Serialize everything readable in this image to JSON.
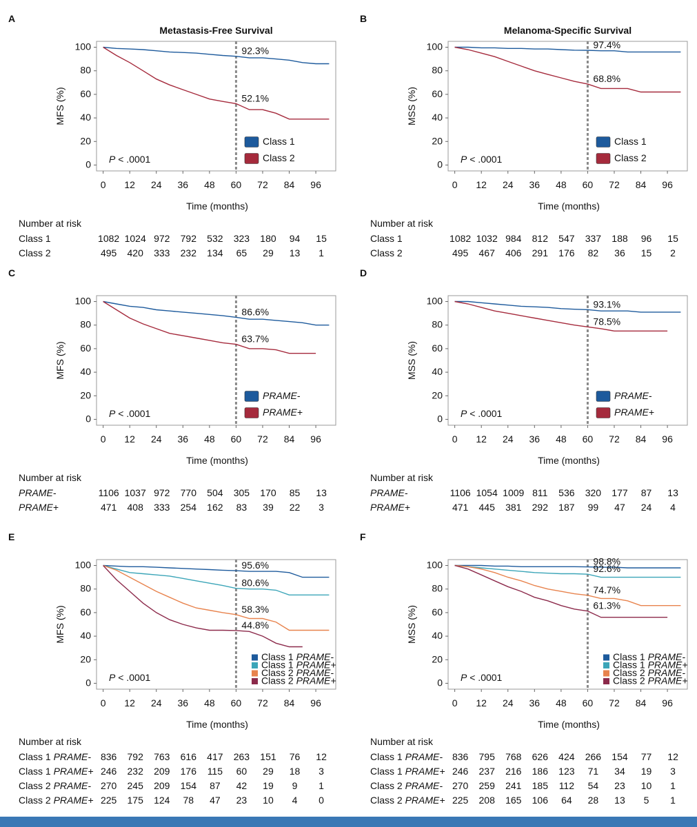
{
  "chart_data": [
    {
      "type": "line",
      "panel": "A",
      "title": "Metastasis-Free Survival",
      "ylabel": "MFS (%)",
      "xlabel": "Time (months)",
      "annotation": "P < .0001",
      "xlim": [
        -3,
        105
      ],
      "ylim": [
        -5,
        105
      ],
      "xticks": [
        0,
        12,
        24,
        36,
        48,
        60,
        72,
        84,
        96
      ],
      "yticks": [
        0,
        20,
        40,
        60,
        80,
        100
      ],
      "landmark_x": 60,
      "legend": "lower-right",
      "x": [
        0,
        6,
        12,
        18,
        24,
        30,
        36,
        42,
        48,
        54,
        60,
        66,
        72,
        78,
        84,
        90,
        96,
        102
      ],
      "series": [
        {
          "name": "Class 1",
          "color": "#1d5a9c",
          "values": [
            100,
            99,
            98.5,
            98,
            97,
            96,
            95.5,
            95,
            94,
            93,
            92.3,
            91,
            91,
            90,
            89,
            87,
            86,
            86
          ],
          "landmark": {
            "value": 92.3,
            "label": "92.3%"
          }
        },
        {
          "name": "Class 2",
          "color": "#a52a3c",
          "values": [
            100,
            93,
            87,
            80,
            73,
            68,
            64,
            60,
            56,
            54,
            52.1,
            47,
            47,
            44,
            39,
            39,
            39,
            39
          ],
          "landmark": {
            "value": 52.1,
            "label": "52.1%"
          }
        }
      ],
      "risk_table": {
        "title": "Number at risk",
        "rows": [
          {
            "label": "Class 1",
            "values": [
              1082,
              1024,
              972,
              792,
              532,
              323,
              180,
              94,
              15
            ]
          },
          {
            "label": "Class 2",
            "values": [
              495,
              420,
              333,
              232,
              134,
              65,
              29,
              13,
              1
            ]
          }
        ]
      }
    },
    {
      "type": "line",
      "panel": "B",
      "title": "Melanoma-Specific Survival",
      "ylabel": "MSS (%)",
      "xlabel": "Time (months)",
      "annotation": "P < .0001",
      "xlim": [
        -3,
        105
      ],
      "ylim": [
        -5,
        105
      ],
      "xticks": [
        0,
        12,
        24,
        36,
        48,
        60,
        72,
        84,
        96
      ],
      "yticks": [
        0,
        20,
        40,
        60,
        80,
        100
      ],
      "landmark_x": 60,
      "legend": "lower-right",
      "x": [
        0,
        6,
        12,
        18,
        24,
        30,
        36,
        42,
        48,
        54,
        60,
        66,
        72,
        78,
        84,
        90,
        96,
        102
      ],
      "series": [
        {
          "name": "Class 1",
          "color": "#1d5a9c",
          "values": [
            100,
            100,
            99.5,
            99.5,
            99,
            99,
            98.5,
            98.5,
            98,
            97.5,
            97.4,
            97,
            97,
            96,
            96,
            96,
            96,
            96
          ],
          "landmark": {
            "value": 97.4,
            "label": "97.4%"
          }
        },
        {
          "name": "Class 2",
          "color": "#a52a3c",
          "values": [
            100,
            98,
            95,
            92,
            88,
            84,
            80,
            77,
            74,
            71,
            68.8,
            65,
            65,
            65,
            62,
            62,
            62,
            62
          ],
          "landmark": {
            "value": 68.8,
            "label": "68.8%"
          }
        }
      ],
      "risk_table": {
        "title": "Number at risk",
        "rows": [
          {
            "label": "Class 1",
            "values": [
              1082,
              1032,
              984,
              812,
              547,
              337,
              188,
              96,
              15
            ]
          },
          {
            "label": "Class 2",
            "values": [
              495,
              467,
              406,
              291,
              176,
              82,
              36,
              15,
              2
            ]
          }
        ]
      }
    },
    {
      "type": "line",
      "panel": "C",
      "ylabel": "MFS (%)",
      "xlabel": "Time (months)",
      "annotation": "P < .0001",
      "xlim": [
        -3,
        105
      ],
      "ylim": [
        -5,
        105
      ],
      "xticks": [
        0,
        12,
        24,
        36,
        48,
        60,
        72,
        84,
        96
      ],
      "yticks": [
        0,
        20,
        40,
        60,
        80,
        100
      ],
      "landmark_x": 60,
      "legend": "lower-right",
      "x": [
        0,
        6,
        12,
        18,
        24,
        30,
        36,
        42,
        48,
        54,
        60,
        66,
        72,
        78,
        84,
        90,
        96,
        102
      ],
      "series": [
        {
          "name": "PRAME-",
          "color": "#1d5a9c",
          "values": [
            100,
            98,
            96,
            95,
            93,
            92,
            91,
            90,
            89,
            88,
            86.6,
            85,
            85,
            84,
            83,
            82,
            80,
            80
          ],
          "landmark": {
            "value": 86.6,
            "label": "86.6%"
          }
        },
        {
          "name": "PRAME+",
          "color": "#a52a3c",
          "values": [
            100,
            93,
            86,
            81,
            77,
            73,
            71,
            69,
            67,
            65,
            63.7,
            60,
            60,
            59,
            56,
            56,
            56,
            null
          ],
          "landmark": {
            "value": 63.7,
            "label": "63.7%"
          }
        }
      ],
      "risk_table": {
        "title": "Number at risk",
        "rows": [
          {
            "label": "PRAME-",
            "values": [
              1106,
              1037,
              972,
              770,
              504,
              305,
              170,
              85,
              13
            ]
          },
          {
            "label": "PRAME+",
            "values": [
              471,
              408,
              333,
              254,
              162,
              83,
              39,
              22,
              3
            ]
          }
        ]
      }
    },
    {
      "type": "line",
      "panel": "D",
      "ylabel": "MSS (%)",
      "xlabel": "Time (months)",
      "annotation": "P < .0001",
      "xlim": [
        -3,
        105
      ],
      "ylim": [
        -5,
        105
      ],
      "xticks": [
        0,
        12,
        24,
        36,
        48,
        60,
        72,
        84,
        96
      ],
      "yticks": [
        0,
        20,
        40,
        60,
        80,
        100
      ],
      "landmark_x": 60,
      "legend": "lower-right",
      "x": [
        0,
        6,
        12,
        18,
        24,
        30,
        36,
        42,
        48,
        54,
        60,
        66,
        72,
        78,
        84,
        90,
        96,
        102
      ],
      "series": [
        {
          "name": "PRAME-",
          "color": "#1d5a9c",
          "values": [
            100,
            100,
            99,
            98,
            97,
            96,
            95.5,
            95,
            94,
            93.5,
            93.1,
            92,
            92,
            92,
            91,
            91,
            91,
            91
          ],
          "landmark": {
            "value": 93.1,
            "label": "93.1%"
          }
        },
        {
          "name": "PRAME+",
          "color": "#a52a3c",
          "values": [
            100,
            98,
            95,
            92,
            90,
            88,
            86,
            84,
            82,
            80,
            78.5,
            77,
            75,
            75,
            75,
            75,
            75,
            null
          ],
          "landmark": {
            "value": 78.5,
            "label": "78.5%"
          }
        }
      ],
      "risk_table": {
        "title": "Number at risk",
        "rows": [
          {
            "label": "PRAME-",
            "values": [
              1106,
              1054,
              1009,
              811,
              536,
              320,
              177,
              87,
              13
            ]
          },
          {
            "label": "PRAME+",
            "values": [
              471,
              445,
              381,
              292,
              187,
              99,
              47,
              24,
              4
            ]
          }
        ]
      }
    },
    {
      "type": "line",
      "panel": "E",
      "ylabel": "MFS (%)",
      "xlabel": "Time (months)",
      "annotation": "P < .0001",
      "xlim": [
        -3,
        105
      ],
      "ylim": [
        -5,
        105
      ],
      "xticks": [
        0,
        12,
        24,
        36,
        48,
        60,
        72,
        84,
        96
      ],
      "yticks": [
        0,
        20,
        40,
        60,
        80,
        100
      ],
      "landmark_x": 60,
      "legend": "lower-right",
      "x": [
        0,
        6,
        12,
        18,
        24,
        30,
        36,
        42,
        48,
        54,
        60,
        66,
        72,
        78,
        84,
        90,
        96,
        102
      ],
      "series": [
        {
          "name": "Class 1 PRAME-",
          "color": "#1d5a9c",
          "values": [
            100,
            99.5,
            99,
            99,
            98.5,
            98,
            97.5,
            97,
            96.5,
            96,
            95.6,
            95,
            95,
            95,
            94,
            90,
            90,
            90
          ],
          "landmark": {
            "value": 95.6,
            "label": "95.6%"
          }
        },
        {
          "name": "Class 1 PRAME+",
          "color": "#3ba5b8",
          "values": [
            100,
            97,
            94,
            93,
            92,
            91,
            89,
            87,
            85,
            83,
            80.6,
            80,
            80,
            79,
            75,
            75,
            75,
            75
          ],
          "landmark": {
            "value": 80.6,
            "label": "80.6%"
          }
        },
        {
          "name": "Class 2 PRAME-",
          "color": "#e8834d",
          "values": [
            100,
            96,
            90,
            84,
            78,
            73,
            68,
            64,
            62,
            60,
            58.3,
            55,
            55,
            52,
            45,
            45,
            45,
            45
          ],
          "landmark": {
            "value": 58.3,
            "label": "58.3%"
          }
        },
        {
          "name": "Class 2 PRAME+",
          "color": "#8c2a4b",
          "values": [
            100,
            88,
            78,
            68,
            60,
            54,
            50,
            47,
            45,
            45,
            44.8,
            44,
            40,
            34,
            31,
            31,
            null,
            null
          ],
          "landmark": {
            "value": 44.8,
            "label": "44.8%"
          }
        }
      ],
      "risk_table": {
        "title": "Number at risk",
        "rows": [
          {
            "label": "Class 1 PRAME-",
            "values": [
              836,
              792,
              763,
              616,
              417,
              263,
              151,
              76,
              12
            ]
          },
          {
            "label": "Class 1 PRAME+",
            "values": [
              246,
              232,
              209,
              176,
              115,
              60,
              29,
              18,
              3
            ]
          },
          {
            "label": "Class 2 PRAME-",
            "values": [
              270,
              245,
              209,
              154,
              87,
              42,
              19,
              9,
              1
            ]
          },
          {
            "label": "Class 2 PRAME+",
            "values": [
              225,
              175,
              124,
              78,
              47,
              23,
              10,
              4,
              0
            ]
          }
        ]
      }
    },
    {
      "type": "line",
      "panel": "F",
      "ylabel": "MSS (%)",
      "xlabel": "Time (months)",
      "annotation": "P < .0001",
      "xlim": [
        -3,
        105
      ],
      "ylim": [
        -5,
        105
      ],
      "xticks": [
        0,
        12,
        24,
        36,
        48,
        60,
        72,
        84,
        96
      ],
      "yticks": [
        0,
        20,
        40,
        60,
        80,
        100
      ],
      "landmark_x": 60,
      "legend": "lower-right",
      "x": [
        0,
        6,
        12,
        18,
        24,
        30,
        36,
        42,
        48,
        54,
        60,
        66,
        72,
        78,
        84,
        90,
        96,
        102
      ],
      "series": [
        {
          "name": "Class 1 PRAME-",
          "color": "#1d5a9c",
          "values": [
            100,
            100,
            100,
            99.5,
            99.5,
            99,
            99,
            99,
            99,
            99,
            98.8,
            98.5,
            98.5,
            98,
            98,
            98,
            98,
            98
          ],
          "landmark": {
            "value": 98.8,
            "label": "98.8%"
          }
        },
        {
          "name": "Class 1 PRAME+",
          "color": "#3ba5b8",
          "values": [
            100,
            99,
            98,
            97,
            96,
            95,
            94,
            93.5,
            93,
            93,
            92.6,
            90,
            90,
            90,
            90,
            90,
            90,
            90
          ],
          "landmark": {
            "value": 92.6,
            "label": "92.6%"
          }
        },
        {
          "name": "Class 2 PRAME-",
          "color": "#e8834d",
          "values": [
            100,
            99,
            97,
            94,
            90,
            87,
            83,
            80,
            78,
            76,
            74.7,
            72,
            72,
            70,
            66,
            66,
            66,
            66
          ],
          "landmark": {
            "value": 74.7,
            "label": "74.7%"
          }
        },
        {
          "name": "Class 2 PRAME+",
          "color": "#8c2a4b",
          "values": [
            100,
            97,
            92,
            87,
            82,
            78,
            73,
            70,
            66,
            63,
            61.3,
            56,
            56,
            56,
            56,
            56,
            56,
            null
          ],
          "landmark": {
            "value": 61.3,
            "label": "61.3%"
          }
        }
      ],
      "risk_table": {
        "title": "Number at risk",
        "rows": [
          {
            "label": "Class 1 PRAME-",
            "values": [
              836,
              795,
              768,
              626,
              424,
              266,
              154,
              77,
              12
            ]
          },
          {
            "label": "Class 1 PRAME+",
            "values": [
              246,
              237,
              216,
              186,
              123,
              71,
              34,
              19,
              3
            ]
          },
          {
            "label": "Class 2 PRAME-",
            "values": [
              270,
              259,
              241,
              185,
              112,
              54,
              23,
              10,
              1
            ]
          },
          {
            "label": "Class 2 PRAME+",
            "values": [
              225,
              208,
              165,
              106,
              64,
              28,
              13,
              5,
              1
            ]
          }
        ]
      }
    }
  ]
}
